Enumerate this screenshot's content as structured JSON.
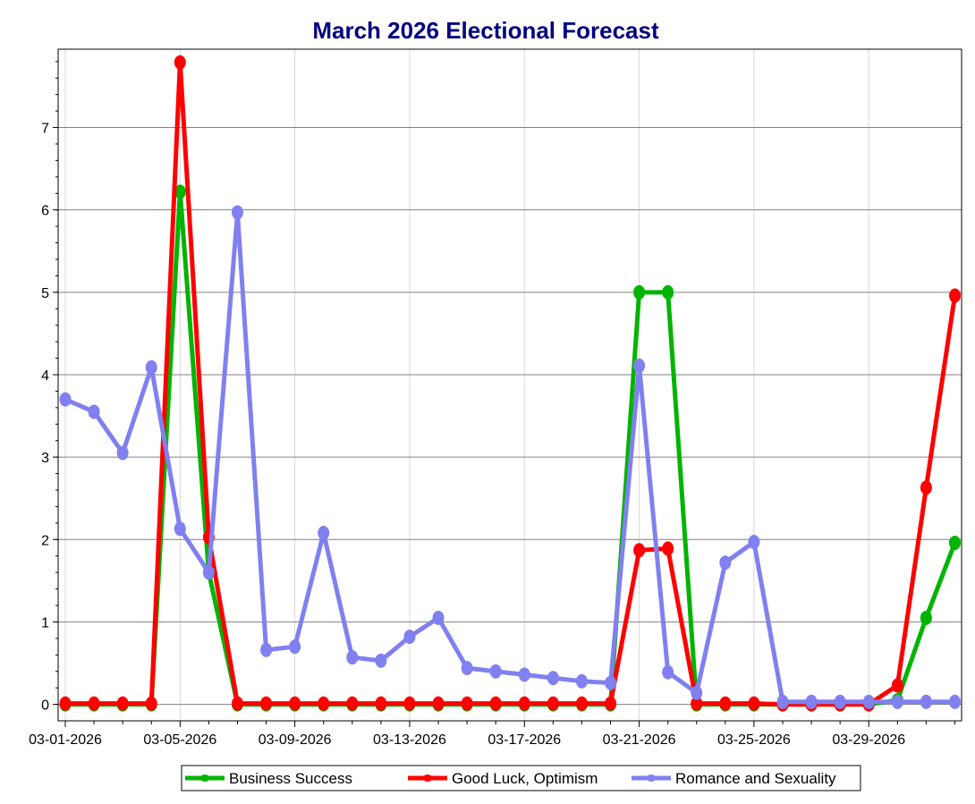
{
  "chart_data": {
    "type": "line",
    "title": "March 2026 Electional Forecast",
    "xlabel": "",
    "ylabel": "",
    "ylim": [
      -0.2,
      7.95
    ],
    "yticks": [
      0,
      1,
      2,
      3,
      4,
      5,
      6,
      7
    ],
    "x_tick_labels": [
      "03-01-2026",
      "03-05-2026",
      "03-09-2026",
      "03-13-2026",
      "03-17-2026",
      "03-21-2026",
      "03-25-2026",
      "03-29-2026"
    ],
    "x_tick_every": 4,
    "x": [
      "03-01-2026",
      "03-02-2026",
      "03-03-2026",
      "03-04-2026",
      "03-05-2026",
      "03-06-2026",
      "03-07-2026",
      "03-08-2026",
      "03-09-2026",
      "03-10-2026",
      "03-11-2026",
      "03-12-2026",
      "03-13-2026",
      "03-14-2026",
      "03-15-2026",
      "03-16-2026",
      "03-17-2026",
      "03-18-2026",
      "03-19-2026",
      "03-20-2026",
      "03-21-2026",
      "03-22-2026",
      "03-23-2026",
      "03-24-2026",
      "03-25-2026",
      "03-26-2026",
      "03-27-2026",
      "03-28-2026",
      "03-29-2026",
      "03-30-2026",
      "03-31-2026",
      "04-01-2026"
    ],
    "grid": true,
    "legend": "bottom",
    "series": [
      {
        "name": "Business Success",
        "color": "#00b400",
        "values": [
          0,
          0,
          0,
          0,
          6.22,
          1.6,
          0,
          0,
          0,
          0,
          0,
          0,
          0,
          0,
          0,
          0,
          0,
          0,
          0,
          0,
          5.0,
          5.0,
          0,
          0,
          0,
          0,
          0,
          0,
          0,
          0.05,
          1.05,
          1.96
        ]
      },
      {
        "name": "Good Luck, Optimism",
        "color": "#ff0000",
        "values": [
          0.01,
          0.01,
          0.01,
          0.01,
          7.79,
          2.03,
          0.01,
          0.01,
          0.01,
          0.01,
          0.01,
          0.01,
          0.01,
          0.01,
          0.01,
          0.01,
          0.01,
          0.01,
          0.01,
          0.01,
          1.87,
          1.89,
          0.01,
          0.01,
          0.01,
          0.0,
          0.0,
          0.0,
          0.0,
          0.23,
          2.63,
          4.96
        ]
      },
      {
        "name": "Romance and Sexuality",
        "color": "#8080f0",
        "values": [
          3.7,
          3.55,
          3.05,
          4.09,
          2.13,
          1.6,
          5.97,
          0.66,
          0.7,
          2.08,
          0.57,
          0.53,
          0.82,
          1.05,
          0.44,
          0.4,
          0.36,
          0.32,
          0.28,
          0.26,
          4.11,
          0.39,
          0.14,
          1.72,
          1.97,
          0.03,
          0.03,
          0.03,
          0.03,
          0.03,
          0.03,
          0.03
        ]
      }
    ]
  },
  "colors": {
    "title": "#000080",
    "grid_major": "#808080",
    "grid_minor": "#d8d8d8",
    "axis": "#000000"
  }
}
